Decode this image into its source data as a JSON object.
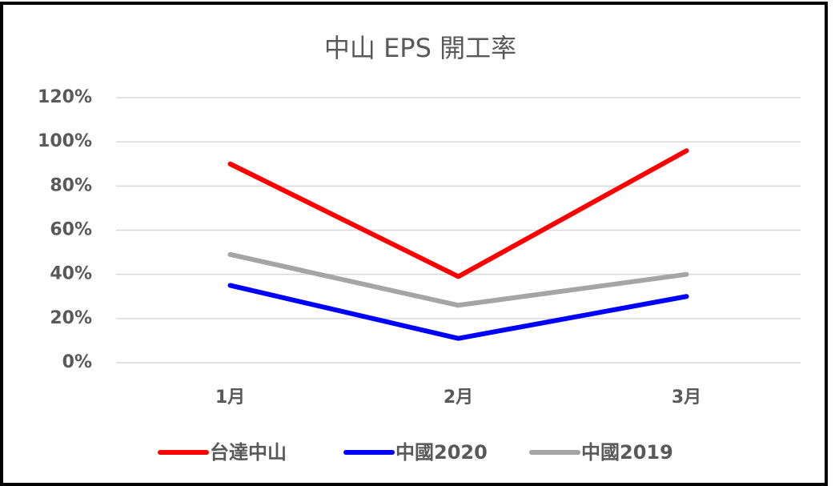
{
  "chart_data": {
    "type": "line",
    "title": "中山 EPS 開工率",
    "categories": [
      "1月",
      "2月",
      "3月"
    ],
    "series": [
      {
        "name": "台達中山",
        "color": "#ff0000",
        "values": [
          90,
          39,
          96
        ]
      },
      {
        "name": "中國2020",
        "color": "#0000ff",
        "values": [
          35,
          11,
          30
        ]
      },
      {
        "name": "中國2019",
        "color": "#a5a5a5",
        "values": [
          49,
          26,
          40
        ]
      }
    ],
    "ylim": [
      0,
      120
    ],
    "yticks": [
      {
        "value": 0,
        "label": "0%"
      },
      {
        "value": 20,
        "label": "20%"
      },
      {
        "value": 40,
        "label": "40%"
      },
      {
        "value": 60,
        "label": "60%"
      },
      {
        "value": 80,
        "label": "80%"
      },
      {
        "value": 100,
        "label": "100%"
      },
      {
        "value": 120,
        "label": "120%"
      }
    ],
    "grid": true,
    "legend": "bottom"
  }
}
